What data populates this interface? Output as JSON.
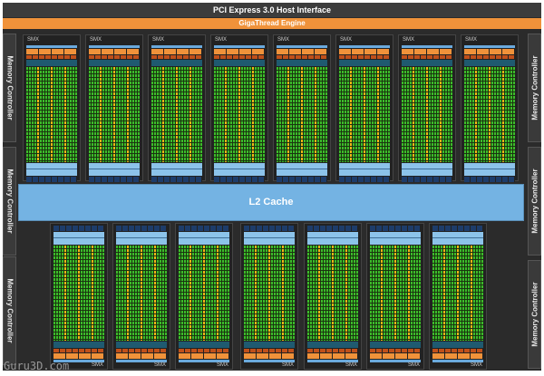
{
  "header": {
    "pcie": "PCI Express 3.0 Host Interface",
    "gigathread": "GigaThread Engine"
  },
  "memory_controllers": [
    "Memory Controller",
    "Memory Controller",
    "Memory Controller",
    "Memory Controller",
    "Memory Controller",
    "Memory Controller"
  ],
  "l2_cache": "L2 Cache",
  "smx_label": "SMX",
  "top_smx_count": 8,
  "bottom_smx_count": 7,
  "colors": {
    "orange": "#f0923a",
    "l2": "#74b3e3",
    "core_green": "#3cbc2a",
    "core_yellow": "#f2b817"
  },
  "watermark": "Guru3D.com"
}
